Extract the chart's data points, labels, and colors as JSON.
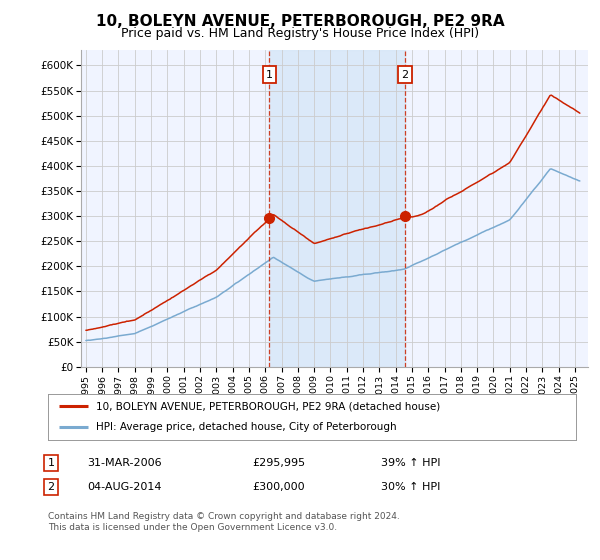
{
  "title": "10, BOLEYN AVENUE, PETERBOROUGH, PE2 9RA",
  "subtitle": "Price paid vs. HM Land Registry's House Price Index (HPI)",
  "title_fontsize": 11,
  "subtitle_fontsize": 9,
  "ylabel_ticks": [
    "£0",
    "£50K",
    "£100K",
    "£150K",
    "£200K",
    "£250K",
    "£300K",
    "£350K",
    "£400K",
    "£450K",
    "£500K",
    "£550K",
    "£600K"
  ],
  "ytick_values": [
    0,
    50000,
    100000,
    150000,
    200000,
    250000,
    300000,
    350000,
    400000,
    450000,
    500000,
    550000,
    600000
  ],
  "ylim": [
    0,
    630000
  ],
  "xlim_start": 1994.7,
  "xlim_end": 2025.8,
  "xtick_years": [
    1995,
    1996,
    1997,
    1998,
    1999,
    2000,
    2001,
    2002,
    2003,
    2004,
    2005,
    2006,
    2007,
    2008,
    2009,
    2010,
    2011,
    2012,
    2013,
    2014,
    2015,
    2016,
    2017,
    2018,
    2019,
    2020,
    2021,
    2022,
    2023,
    2024,
    2025
  ],
  "sale1_x": 2006.25,
  "sale1_y": 295995,
  "sale1_label": "1",
  "sale1_date": "31-MAR-2006",
  "sale1_price": "£295,995",
  "sale1_hpi": "39% ↑ HPI",
  "sale2_x": 2014.58,
  "sale2_y": 300000,
  "sale2_label": "2",
  "sale2_date": "04-AUG-2014",
  "sale2_price": "£300,000",
  "sale2_hpi": "30% ↑ HPI",
  "hpi_line_color": "#7aaad0",
  "price_line_color": "#cc2200",
  "vline_color": "#cc2200",
  "marker_color": "#cc2200",
  "shading_color": "#d8e8f8",
  "legend_label_price": "10, BOLEYN AVENUE, PETERBOROUGH, PE2 9RA (detached house)",
  "legend_label_hpi": "HPI: Average price, detached house, City of Peterborough",
  "footer_text": "Contains HM Land Registry data © Crown copyright and database right 2024.\nThis data is licensed under the Open Government Licence v3.0.",
  "background_color": "#ffffff",
  "plot_bg_color": "#f0f4ff"
}
